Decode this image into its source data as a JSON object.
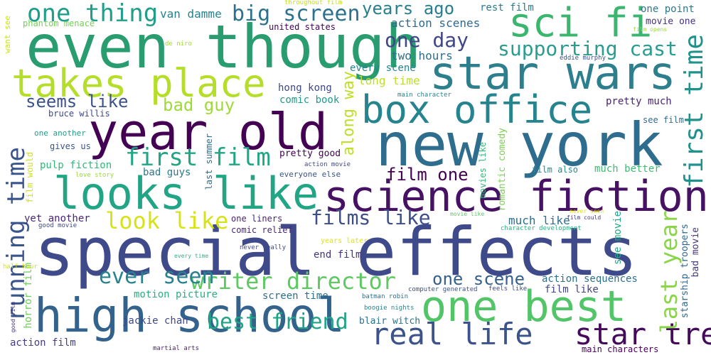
{
  "words": [
    {
      "text": "special effects",
      "color": "#3e4a89"
    },
    {
      "text": "even though",
      "color": "#2a9d70"
    },
    {
      "text": "sci fi",
      "color": "#3bb66f"
    },
    {
      "text": "star wars",
      "color": "#2e7f8e"
    },
    {
      "text": "new york",
      "color": "#2f6d8e"
    },
    {
      "text": "year old",
      "color": "#440154"
    },
    {
      "text": "takes place",
      "color": "#b5de2b"
    },
    {
      "text": "looks like",
      "color": "#21a585"
    },
    {
      "text": "science fiction",
      "color": "#471164"
    },
    {
      "text": "box office",
      "color": "#25848e"
    },
    {
      "text": "high school",
      "color": "#33638d"
    },
    {
      "text": "one best",
      "color": "#52c569"
    },
    {
      "text": "real life",
      "color": "#3b528b"
    },
    {
      "text": "star trek",
      "color": "#450a5c"
    },
    {
      "text": "one thing",
      "color": "#1f9e89"
    },
    {
      "text": "big screen",
      "color": "#2c728e"
    },
    {
      "text": "years ago",
      "color": "#277f8e"
    },
    {
      "text": "first time",
      "color": "#21918c"
    },
    {
      "text": "running time",
      "color": "#3a548c"
    },
    {
      "text": "first film",
      "color": "#21a685"
    },
    {
      "text": "supporting cast",
      "color": "#2a9d8f"
    },
    {
      "text": "one day",
      "color": "#404688"
    },
    {
      "text": "writer director",
      "color": "#5ec962"
    },
    {
      "text": "ever seen",
      "color": "#26828e"
    },
    {
      "text": "best friend",
      "color": "#20a486"
    },
    {
      "text": "last year",
      "color": "#89d548"
    },
    {
      "text": "look like",
      "color": "#d8e219"
    },
    {
      "text": "films like",
      "color": "#3d4e8a"
    },
    {
      "text": "one scene",
      "color": "#355f8d"
    },
    {
      "text": "seems like",
      "color": "#3b528b"
    },
    {
      "text": "bad guy",
      "color": "#a0da39"
    },
    {
      "text": "along way",
      "color": "#bddf26"
    },
    {
      "text": "film one",
      "color": "#440154"
    },
    {
      "text": "van damme",
      "color": "#26828e"
    },
    {
      "text": "rest film",
      "color": "#297b8e"
    },
    {
      "text": "one point",
      "color": "#2a788e"
    },
    {
      "text": "action scenes",
      "color": "#31688e"
    },
    {
      "text": "two hours",
      "color": "#2c718e"
    },
    {
      "text": "hong kong",
      "color": "#3f4889"
    },
    {
      "text": "comic book",
      "color": "#1e9b8a"
    },
    {
      "text": "long time",
      "color": "#bddf26"
    },
    {
      "text": "every scene",
      "color": "#25858e"
    },
    {
      "text": "pretty much",
      "color": "#482475"
    },
    {
      "text": "see film",
      "color": "#306a8e"
    },
    {
      "text": "pulp fiction",
      "color": "#34b679"
    },
    {
      "text": "bad guys",
      "color": "#2a788e"
    },
    {
      "text": "much better",
      "color": "#3fbc73"
    },
    {
      "text": "yet another",
      "color": "#482677"
    },
    {
      "text": "much like",
      "color": "#2e6e8e"
    },
    {
      "text": "action sequences",
      "color": "#2d708e"
    },
    {
      "text": "film like",
      "color": "#414487"
    },
    {
      "text": "motion picture",
      "color": "#29af7f"
    },
    {
      "text": "screen time",
      "color": "#2d708e"
    },
    {
      "text": "end film",
      "color": "#46337e"
    },
    {
      "text": "jackie chan",
      "color": "#3e4989"
    },
    {
      "text": "action film",
      "color": "#433e85"
    },
    {
      "text": "blair witch",
      "color": "#2c728e"
    },
    {
      "text": "starship troopers",
      "color": "#31688e"
    },
    {
      "text": "bad movie",
      "color": "#463480"
    },
    {
      "text": "see movie",
      "color": "#22a884"
    },
    {
      "text": "romantic comedy",
      "color": "#7ad151"
    },
    {
      "text": "movies like",
      "color": "#35b779"
    },
    {
      "text": "horror film",
      "color": "#6ece58"
    },
    {
      "text": "movie one",
      "color": "#46327e"
    },
    {
      "text": "bruce willis",
      "color": "#3e4989"
    },
    {
      "text": "gives us",
      "color": "#3b528b"
    },
    {
      "text": "one another",
      "color": "#1fa088"
    },
    {
      "text": "film would",
      "color": "#d2e21b"
    },
    {
      "text": "last summer",
      "color": "#2d708e"
    },
    {
      "text": "pretty good",
      "color": "#440154"
    },
    {
      "text": "everyone else",
      "color": "#3b528b"
    },
    {
      "text": "film also",
      "color": "#238a8d"
    },
    {
      "text": "one liners",
      "color": "#482374"
    },
    {
      "text": "comic relief",
      "color": "#482878"
    },
    {
      "text": "years later",
      "color": "#dde318"
    },
    {
      "text": "united states",
      "color": "#440154"
    },
    {
      "text": "phantom menace",
      "color": "#73d056"
    },
    {
      "text": "want see",
      "color": "#cae11f"
    },
    {
      "text": "throughout film",
      "color": "#c2df23"
    },
    {
      "text": "de niro",
      "color": "#a2da37"
    },
    {
      "text": "film opens",
      "color": "#9dd93b"
    },
    {
      "text": "eddie murphy",
      "color": "#3b528b"
    },
    {
      "text": "main character",
      "color": "#25858e"
    },
    {
      "text": "love story",
      "color": "#9bd93c"
    },
    {
      "text": "action movie",
      "color": "#3e4a89"
    },
    {
      "text": "good movie",
      "color": "#3f4788"
    },
    {
      "text": "movie like",
      "color": "#5cc863"
    },
    {
      "text": "never seen",
      "color": "#dde318"
    },
    {
      "text": "film could",
      "color": "#443983"
    },
    {
      "text": "character development",
      "color": "#2ab07f"
    },
    {
      "text": "never really",
      "color": "#3f4889"
    },
    {
      "text": "every time",
      "color": "#2db27d"
    },
    {
      "text": "half hour",
      "color": "#d2e21b"
    },
    {
      "text": "computer generated",
      "color": "#3b528b"
    },
    {
      "text": "feels like",
      "color": "#3e4989"
    },
    {
      "text": "batman robin",
      "color": "#2d708e"
    },
    {
      "text": "boogie nights",
      "color": "#25848e"
    },
    {
      "text": "good film",
      "color": "#46327e"
    },
    {
      "text": "martial arts",
      "color": "#482878"
    },
    {
      "text": "main characters",
      "color": "#440154"
    }
  ]
}
